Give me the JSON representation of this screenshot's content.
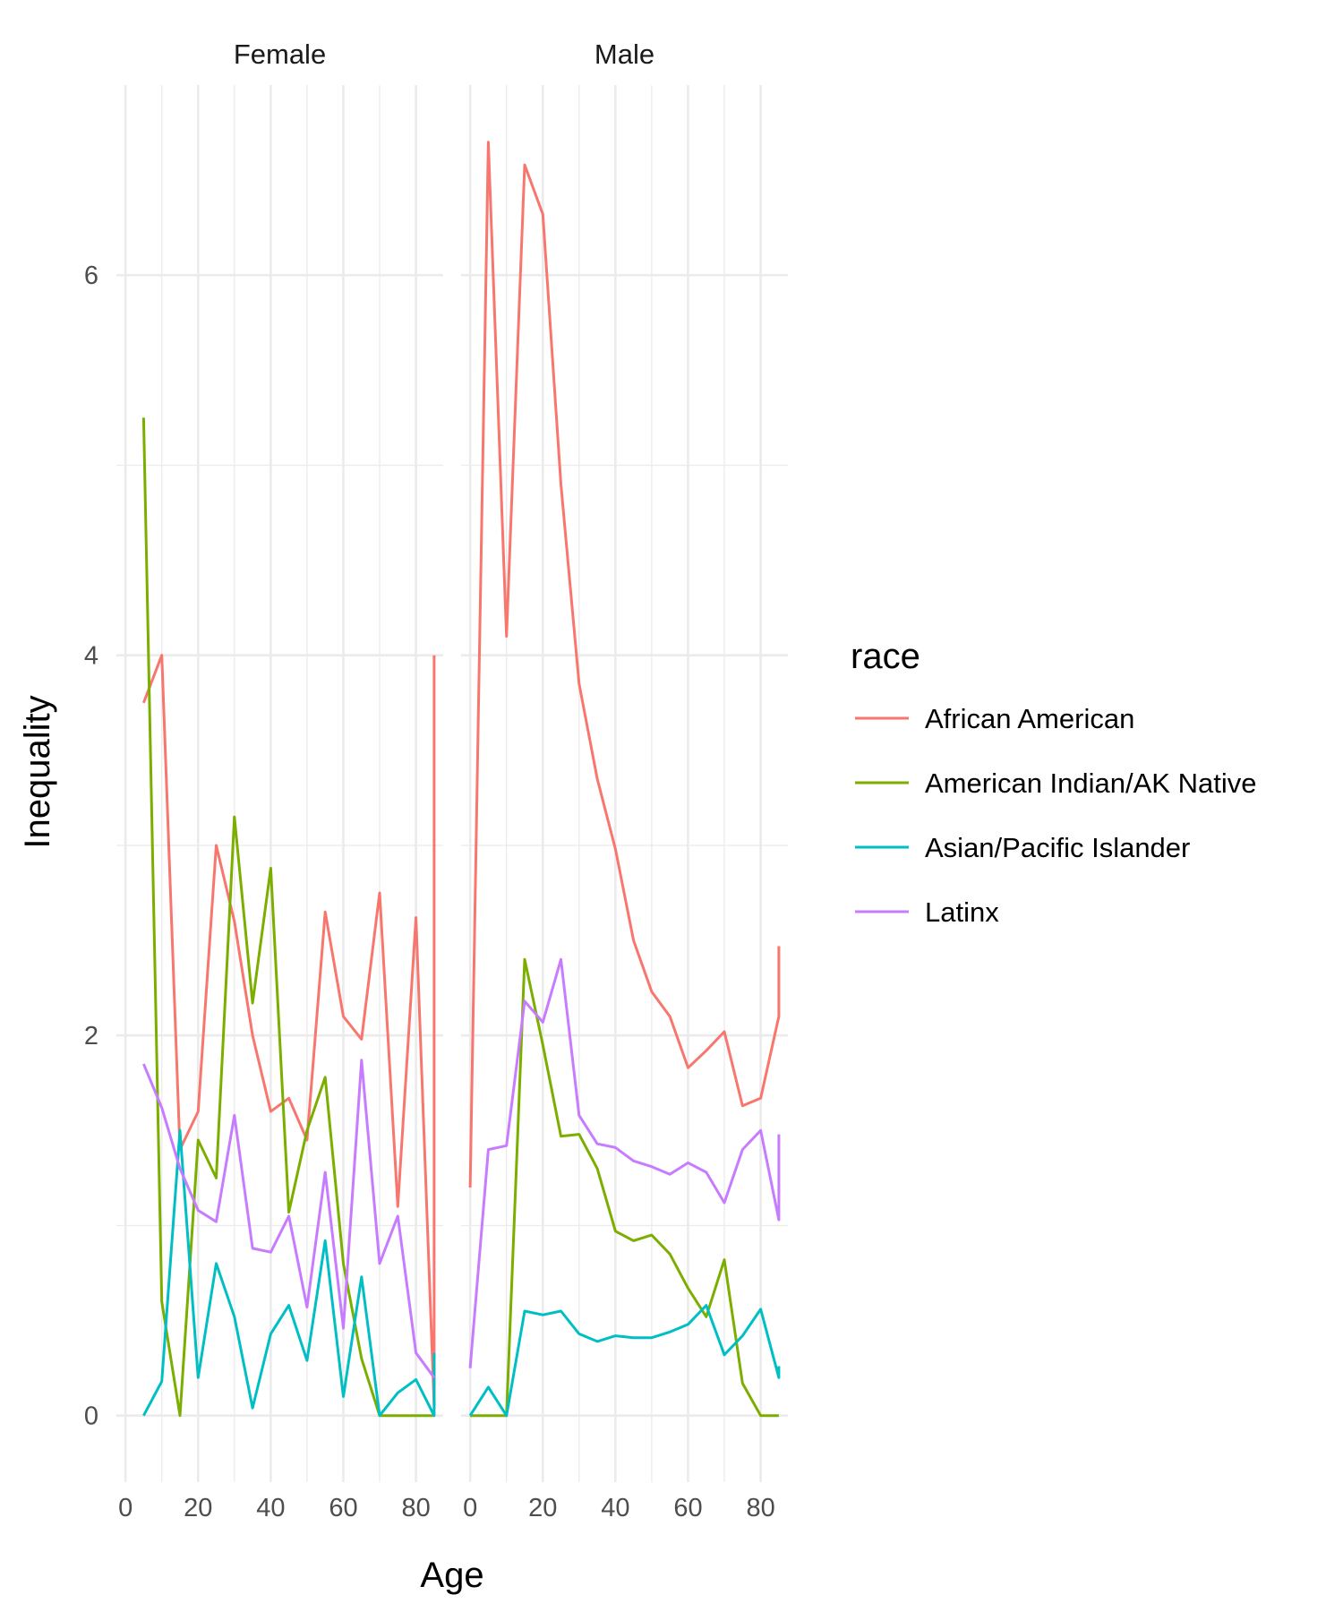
{
  "chart_data": {
    "type": "line",
    "xlabel": "Age",
    "ylabel": "Inequality",
    "xlim": [
      -2.5,
      87.5
    ],
    "ylim": [
      -0.35,
      7.0
    ],
    "x_ticks": [
      0,
      20,
      40,
      60,
      80
    ],
    "y_ticks": [
      0,
      2,
      4,
      6
    ],
    "grid": true,
    "legend_title": "race",
    "legend_position": "right",
    "facets": [
      {
        "title": "Female",
        "series": [
          {
            "name": "African American",
            "color": "#F8766D",
            "x": [
              5,
              10,
              15,
              20,
              25,
              30,
              35,
              40,
              45,
              50,
              55,
              60,
              65,
              70,
              75,
              80,
              85,
              85
            ],
            "y": [
              3.75,
              4.0,
              1.4,
              1.6,
              3.0,
              2.6,
              2.0,
              1.6,
              1.67,
              1.45,
              2.65,
              2.1,
              1.98,
              2.75,
              1.1,
              2.62,
              0.05,
              4.0
            ]
          },
          {
            "name": "American Indian/AK Native",
            "color": "#7CAE00",
            "x": [
              5,
              10,
              15,
              20,
              25,
              30,
              35,
              40,
              45,
              50,
              55,
              60,
              65,
              70,
              75,
              80,
              85
            ],
            "y": [
              5.25,
              0.6,
              0.0,
              1.45,
              1.25,
              3.15,
              2.17,
              2.88,
              1.07,
              1.5,
              1.78,
              0.8,
              0.3,
              0.0,
              0.0,
              0.0,
              0.0
            ]
          },
          {
            "name": "Asian/Pacific Islander",
            "color": "#00BFC4",
            "x": [
              5,
              10,
              15,
              20,
              25,
              30,
              35,
              40,
              45,
              50,
              55,
              60,
              65,
              70,
              75,
              80,
              85,
              85
            ],
            "y": [
              0.0,
              0.18,
              1.5,
              0.2,
              0.8,
              0.52,
              0.04,
              0.43,
              0.58,
              0.29,
              0.92,
              0.1,
              0.73,
              0.0,
              0.12,
              0.19,
              0.0,
              0.33
            ]
          },
          {
            "name": "Latinx",
            "color": "#C77CFF",
            "x": [
              5,
              10,
              15,
              20,
              25,
              30,
              35,
              40,
              45,
              50,
              55,
              60,
              65,
              70,
              75,
              80,
              85
            ],
            "y": [
              1.85,
              1.62,
              1.3,
              1.08,
              1.02,
              1.58,
              0.88,
              0.86,
              1.05,
              0.57,
              1.28,
              0.46,
              1.87,
              0.8,
              1.05,
              0.33,
              0.2
            ]
          }
        ]
      },
      {
        "title": "Male",
        "series": [
          {
            "name": "African American",
            "color": "#F8766D",
            "x": [
              0,
              5,
              10,
              15,
              20,
              25,
              30,
              35,
              40,
              45,
              50,
              55,
              60,
              65,
              70,
              75,
              80,
              85,
              85
            ],
            "y": [
              1.2,
              6.7,
              4.1,
              6.58,
              6.32,
              4.9,
              3.85,
              3.35,
              2.98,
              2.5,
              2.23,
              2.1,
              1.83,
              1.92,
              2.02,
              1.63,
              1.67,
              2.1,
              2.47
            ]
          },
          {
            "name": "American Indian/AK Native",
            "color": "#7CAE00",
            "x": [
              0,
              5,
              10,
              15,
              20,
              25,
              30,
              35,
              40,
              45,
              50,
              55,
              60,
              65,
              70,
              75,
              80,
              85
            ],
            "y": [
              0.0,
              0.0,
              0.0,
              2.4,
              1.95,
              1.47,
              1.48,
              1.3,
              0.97,
              0.92,
              0.95,
              0.85,
              0.67,
              0.52,
              0.82,
              0.17,
              0.0,
              0.0
            ]
          },
          {
            "name": "Asian/Pacific Islander",
            "color": "#00BFC4",
            "x": [
              0,
              5,
              10,
              15,
              20,
              25,
              30,
              35,
              40,
              45,
              50,
              55,
              60,
              65,
              70,
              75,
              80,
              85,
              85
            ],
            "y": [
              0.0,
              0.15,
              0.0,
              0.55,
              0.53,
              0.55,
              0.43,
              0.39,
              0.42,
              0.41,
              0.41,
              0.44,
              0.48,
              0.58,
              0.32,
              0.42,
              0.56,
              0.2,
              0.26
            ]
          },
          {
            "name": "Latinx",
            "color": "#C77CFF",
            "x": [
              0,
              5,
              10,
              15,
              20,
              25,
              30,
              35,
              40,
              45,
              50,
              55,
              60,
              65,
              70,
              75,
              80,
              85,
              85
            ],
            "y": [
              0.25,
              1.4,
              1.42,
              2.18,
              2.07,
              2.4,
              1.58,
              1.43,
              1.41,
              1.34,
              1.31,
              1.27,
              1.33,
              1.28,
              1.12,
              1.4,
              1.5,
              1.03,
              1.48
            ]
          }
        ]
      }
    ]
  }
}
